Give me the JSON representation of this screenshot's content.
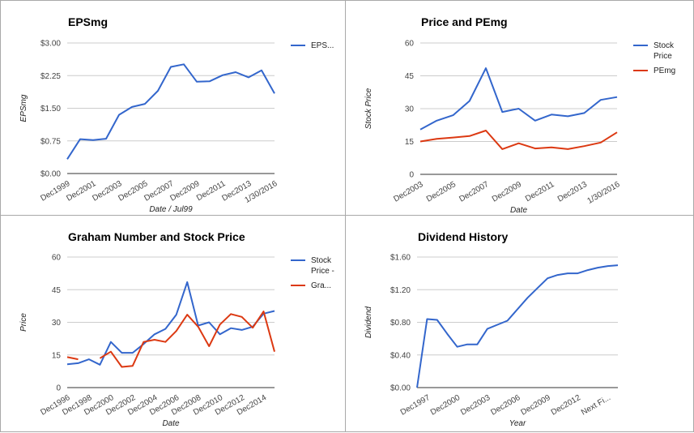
{
  "colors": {
    "blue": "#3366cc",
    "red": "#dc3912",
    "grid": "#cccccc",
    "baseline": "#333333"
  },
  "chart_data": [
    {
      "id": "epsmg",
      "type": "line",
      "title": "EPSmg",
      "xlabel": "Date / Jul99",
      "ylabel": "EPSmg",
      "ylim": [
        0,
        3
      ],
      "yticks": [
        "$0.00",
        "$0.75",
        "$1.50",
        "$2.25",
        "$3.00"
      ],
      "ytick_values": [
        0,
        0.75,
        1.5,
        2.25,
        3.0
      ],
      "xticks": [
        "Dec1999",
        "Dec2001",
        "Dec2003",
        "Dec2005",
        "Dec2007",
        "Dec2009",
        "Dec2011",
        "Dec2013",
        "1/30/2016"
      ],
      "xtick_index": [
        0,
        2,
        4,
        6,
        8,
        10,
        12,
        14,
        16
      ],
      "grid": true,
      "legend_position": "right",
      "series": [
        {
          "name": "EPS...",
          "color": "blue",
          "values": [
            0.33,
            0.79,
            0.77,
            0.8,
            1.35,
            1.53,
            1.6,
            1.9,
            2.45,
            2.51,
            2.11,
            2.12,
            2.26,
            2.33,
            2.21,
            2.37,
            1.84
          ]
        }
      ]
    },
    {
      "id": "price-pemg",
      "type": "line",
      "title": "Price and PEmg",
      "xlabel": "Date",
      "ylabel": "Stock Price",
      "ylim": [
        0,
        60
      ],
      "yticks": [
        "0",
        "15",
        "30",
        "45",
        "60"
      ],
      "ytick_values": [
        0,
        15,
        30,
        45,
        60
      ],
      "xticks": [
        "Dec2003",
        "Dec2005",
        "Dec2007",
        "Dec2009",
        "Dec2011",
        "Dec2013",
        "1/30/2016"
      ],
      "xtick_index": [
        0,
        2,
        4,
        6,
        8,
        10,
        12
      ],
      "grid": true,
      "legend_position": "right",
      "series": [
        {
          "name": "Stock Price",
          "name_lines": [
            "Stock",
            "Price"
          ],
          "color": "blue",
          "values": [
            20.5,
            24.5,
            27,
            33.5,
            48.5,
            28.5,
            30,
            24.5,
            27.3,
            26.5,
            28,
            34,
            35.3
          ]
        },
        {
          "name": "PEmg",
          "name_lines": [
            "PEmg"
          ],
          "color": "red",
          "values": [
            15,
            16.2,
            16.8,
            17.5,
            20,
            11.5,
            14.2,
            11.8,
            12.3,
            11.5,
            12.9,
            14.5,
            19.2
          ]
        }
      ]
    },
    {
      "id": "graham",
      "type": "line",
      "title": "Graham Number and Stock Price",
      "xlabel": "Date",
      "ylabel": "Price",
      "ylim": [
        0,
        60
      ],
      "yticks": [
        "0",
        "15",
        "30",
        "45",
        "60"
      ],
      "ytick_values": [
        0,
        15,
        30,
        45,
        60
      ],
      "xticks": [
        "Dec1996",
        "Dec1998",
        "Dec2000",
        "Dec2002",
        "Dec2004",
        "Dec2006",
        "Dec2008",
        "Dec2010",
        "Dec2012",
        "Dec2014"
      ],
      "xtick_index": [
        0,
        2,
        4,
        6,
        8,
        10,
        12,
        14,
        16,
        18
      ],
      "grid": true,
      "legend_position": "right",
      "series": [
        {
          "name": "Stock Price - ...",
          "name_lines": [
            "Stock",
            "Price -"
          ],
          "color": "blue",
          "values": [
            10.7,
            11.2,
            13,
            10.5,
            21,
            16,
            16,
            20,
            24.5,
            27,
            33.5,
            48.5,
            28.5,
            30,
            24.5,
            27.3,
            26.5,
            28,
            34,
            35.2
          ]
        },
        {
          "name": "Gra...",
          "name_lines": [
            "Gra..."
          ],
          "color": "red",
          "values": [
            14,
            13,
            null,
            13.5,
            16.5,
            9.5,
            10,
            21,
            22,
            21,
            26,
            33.5,
            28,
            19,
            29,
            33.8,
            32.5,
            27.5,
            35,
            16.5
          ]
        }
      ]
    },
    {
      "id": "dividend",
      "type": "line",
      "title": "Dividend History",
      "xlabel": "Year",
      "ylabel": "Dividend",
      "ylim": [
        0,
        1.6
      ],
      "yticks": [
        "$0.00",
        "$0.40",
        "$0.80",
        "$1.20",
        "$1.60"
      ],
      "ytick_values": [
        0,
        0.4,
        0.8,
        1.2,
        1.6
      ],
      "xticks": [
        "Dec1997",
        "Dec2000",
        "Dec2003",
        "Dec2006",
        "Dec2009",
        "Dec2012",
        "Next Fi..."
      ],
      "xtick_index": [
        1,
        4,
        7,
        10,
        13,
        16,
        19
      ],
      "grid": true,
      "legend_position": "none",
      "series": [
        {
          "name": "",
          "color": "blue",
          "values": [
            0.0,
            0.84,
            0.83,
            0.66,
            0.5,
            0.53,
            0.53,
            0.72,
            0.77,
            0.82,
            0.96,
            1.1,
            1.22,
            1.34,
            1.38,
            1.4,
            1.4,
            1.44,
            1.47,
            1.49,
            1.5
          ]
        }
      ]
    }
  ]
}
